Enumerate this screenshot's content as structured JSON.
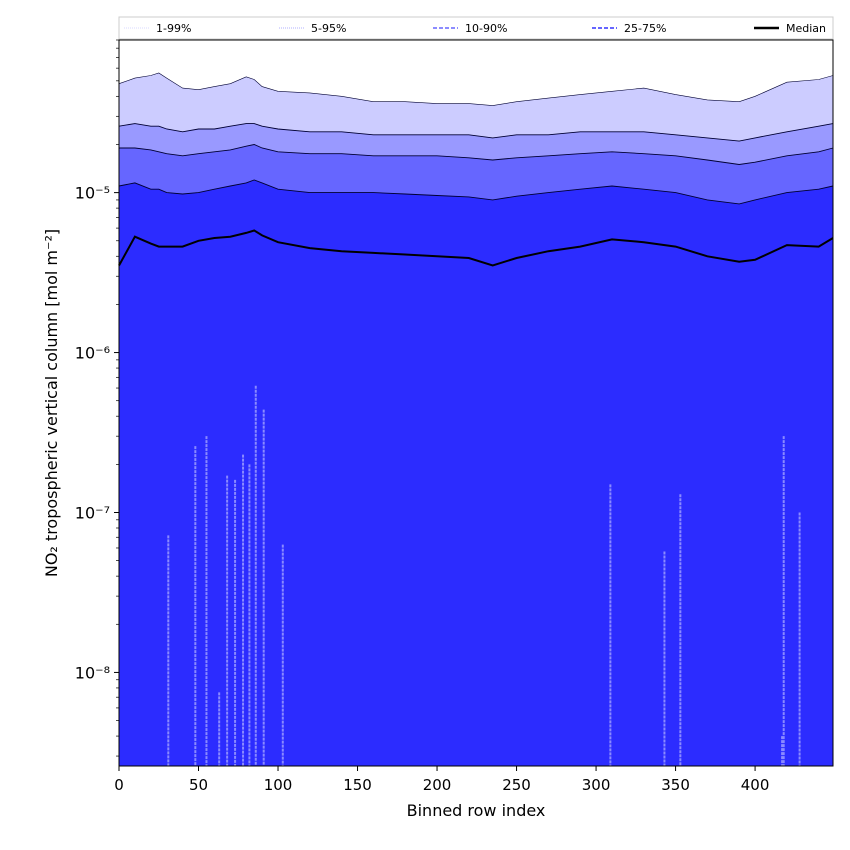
{
  "chart_data": {
    "type": "area",
    "title": "",
    "xlabel": "Binned row index",
    "ylabel": "NO₂ tropospheric vertical column [mol m⁻²]",
    "xlim": [
      0,
      449
    ],
    "ylim": [
      2.6e-09,
      9e-05
    ],
    "yscale": "log",
    "grid": false,
    "legend_position": "top",
    "x_ticks": [
      0,
      50,
      100,
      150,
      200,
      250,
      300,
      350,
      400
    ],
    "y_ticks": [
      {
        "value": 1e-08,
        "label": "10⁻⁸"
      },
      {
        "value": 1e-07,
        "label": "10⁻⁷"
      },
      {
        "value": 1e-06,
        "label": "10⁻⁶"
      },
      {
        "value": 1e-05,
        "label": "10⁻⁵"
      }
    ],
    "legend": [
      {
        "label": "1-99%",
        "style": "thin-dotted",
        "color": "#ccccff"
      },
      {
        "label": "5-95%",
        "style": "thin-dotted",
        "color": "#9999ff"
      },
      {
        "label": "10-90%",
        "style": "dashed",
        "color": "#6666ff"
      },
      {
        "label": "25-75%",
        "style": "dashed",
        "color": "#3333ff"
      },
      {
        "label": "Median",
        "style": "solid",
        "color": "#000000"
      }
    ],
    "band_colors": {
      "p1_99": "#ccccff",
      "p5_95": "#9999ff",
      "p10_90": "#6666ff",
      "p25_75": "#2c2cff",
      "median": "#000000"
    },
    "x": [
      0,
      10,
      20,
      25,
      30,
      40,
      50,
      60,
      70,
      80,
      85,
      90,
      100,
      120,
      140,
      160,
      180,
      200,
      220,
      235,
      250,
      270,
      290,
      310,
      330,
      350,
      370,
      390,
      400,
      420,
      440,
      449
    ],
    "series": [
      {
        "name": "1-99%",
        "role": "upper",
        "values": [
          4.8e-05,
          5.2e-05,
          5.4e-05,
          5.6e-05,
          5.2e-05,
          4.5e-05,
          4.4e-05,
          4.6e-05,
          4.8e-05,
          5.3e-05,
          5.1e-05,
          4.6e-05,
          4.3e-05,
          4.2e-05,
          4e-05,
          3.7e-05,
          3.7e-05,
          3.6e-05,
          3.6e-05,
          3.5e-05,
          3.7e-05,
          3.9e-05,
          4.1e-05,
          4.3e-05,
          4.5e-05,
          4.1e-05,
          3.8e-05,
          3.7e-05,
          4e-05,
          4.9e-05,
          5.1e-05,
          5.4e-05
        ]
      },
      {
        "name": "5-95%",
        "role": "upper",
        "values": [
          2.6e-05,
          2.7e-05,
          2.6e-05,
          2.6e-05,
          2.5e-05,
          2.4e-05,
          2.5e-05,
          2.5e-05,
          2.6e-05,
          2.7e-05,
          2.7e-05,
          2.6e-05,
          2.5e-05,
          2.4e-05,
          2.4e-05,
          2.3e-05,
          2.3e-05,
          2.3e-05,
          2.3e-05,
          2.2e-05,
          2.3e-05,
          2.3e-05,
          2.4e-05,
          2.4e-05,
          2.4e-05,
          2.3e-05,
          2.2e-05,
          2.1e-05,
          2.2e-05,
          2.4e-05,
          2.6e-05,
          2.7e-05
        ]
      },
      {
        "name": "10-90%",
        "role": "upper",
        "values": [
          1.9e-05,
          1.9e-05,
          1.85e-05,
          1.8e-05,
          1.75e-05,
          1.7e-05,
          1.75e-05,
          1.8e-05,
          1.85e-05,
          1.95e-05,
          2e-05,
          1.9e-05,
          1.8e-05,
          1.75e-05,
          1.75e-05,
          1.7e-05,
          1.7e-05,
          1.7e-05,
          1.65e-05,
          1.6e-05,
          1.65e-05,
          1.7e-05,
          1.75e-05,
          1.8e-05,
          1.75e-05,
          1.7e-05,
          1.6e-05,
          1.5e-05,
          1.55e-05,
          1.7e-05,
          1.8e-05,
          1.9e-05
        ]
      },
      {
        "name": "25-75%",
        "role": "upper",
        "values": [
          1.1e-05,
          1.15e-05,
          1.05e-05,
          1.05e-05,
          1e-05,
          9.8e-06,
          1e-05,
          1.05e-05,
          1.1e-05,
          1.15e-05,
          1.2e-05,
          1.15e-05,
          1.05e-05,
          1e-05,
          1e-05,
          1e-05,
          9.8e-06,
          9.6e-06,
          9.4e-06,
          9e-06,
          9.5e-06,
          1e-05,
          1.05e-05,
          1.1e-05,
          1.05e-05,
          1e-05,
          9e-06,
          8.5e-06,
          9e-06,
          1e-05,
          1.05e-05,
          1.1e-05
        ]
      },
      {
        "name": "Median",
        "role": "line",
        "values": [
          3.5e-06,
          5.3e-06,
          4.8e-06,
          4.6e-06,
          4.6e-06,
          4.6e-06,
          5e-06,
          5.2e-06,
          5.3e-06,
          5.6e-06,
          5.8e-06,
          5.4e-06,
          4.9e-06,
          4.5e-06,
          4.3e-06,
          4.2e-06,
          4.1e-06,
          4e-06,
          3.9e-06,
          3.5e-06,
          3.9e-06,
          4.3e-06,
          4.6e-06,
          5.1e-06,
          4.9e-06,
          4.6e-06,
          4e-06,
          3.7e-06,
          3.8e-06,
          4.7e-06,
          4.6e-06,
          5.2e-06
        ]
      }
    ],
    "lower_bound_spikes": [
      {
        "x": 31,
        "value": 7.2e-08
      },
      {
        "x": 48,
        "value": 2.6e-07
      },
      {
        "x": 55,
        "value": 3e-07
      },
      {
        "x": 63,
        "value": 7.5e-09
      },
      {
        "x": 68,
        "value": 1.7e-07
      },
      {
        "x": 73,
        "value": 1.6e-07
      },
      {
        "x": 78,
        "value": 2.3e-07
      },
      {
        "x": 82,
        "value": 2e-07
      },
      {
        "x": 86,
        "value": 6.2e-07
      },
      {
        "x": 91,
        "value": 4.4e-07
      },
      {
        "x": 103,
        "value": 6.3e-08
      },
      {
        "x": 309,
        "value": 1.5e-07
      },
      {
        "x": 343,
        "value": 5.7e-08
      },
      {
        "x": 353,
        "value": 1.3e-07
      },
      {
        "x": 417,
        "value": 4e-09
      },
      {
        "x": 418,
        "value": 3e-07
      },
      {
        "x": 428,
        "value": 1e-07
      }
    ]
  }
}
